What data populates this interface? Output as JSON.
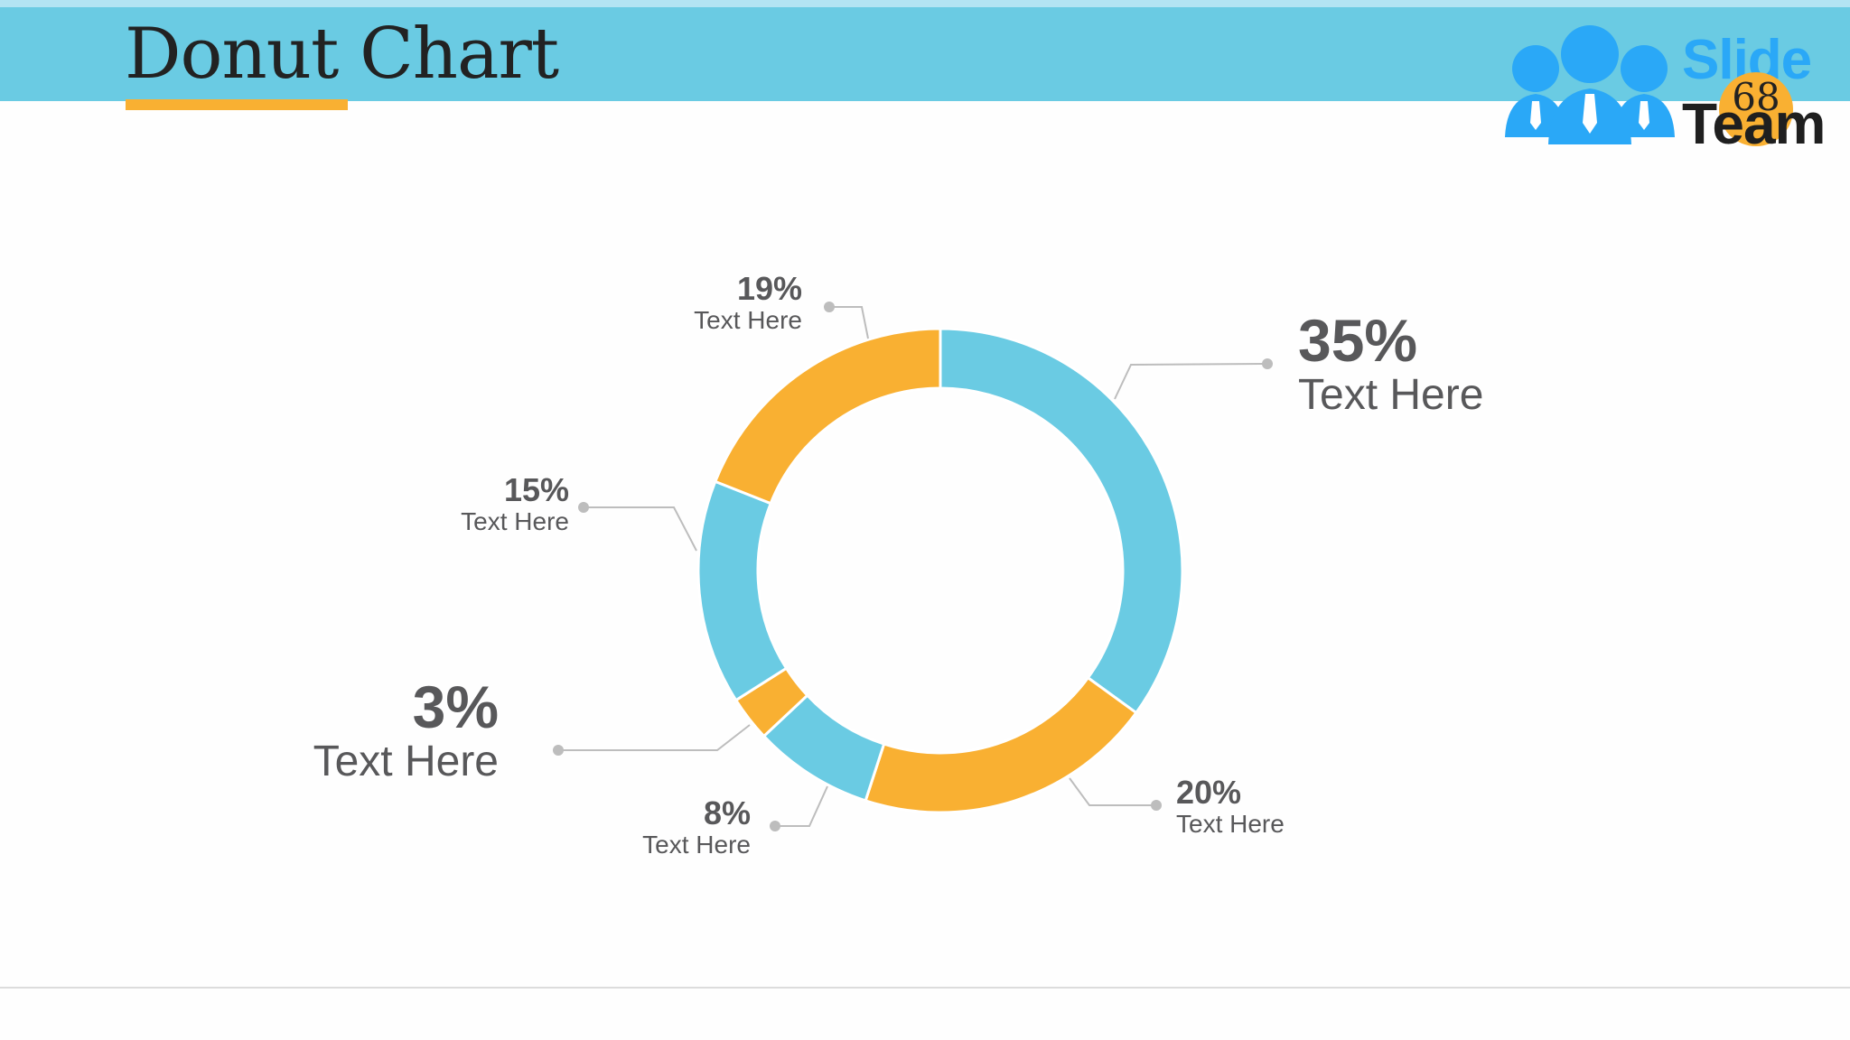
{
  "slide": {
    "title": "Donut Chart",
    "logo": {
      "word1": "Slide",
      "word2": "Team",
      "badge_number": "68"
    },
    "colors": {
      "header": "#6acbe3",
      "header_strip": "#b3e4f3",
      "accent": "#f9b032",
      "blue": "#6acbe3",
      "orange": "#f9b032",
      "text": "#58585a",
      "connector": "#bdbdbd"
    }
  },
  "labels": [
    {
      "pct": "35%",
      "text": "Text Here"
    },
    {
      "pct": "20%",
      "text": "Text Here"
    },
    {
      "pct": "8%",
      "text": "Text Here"
    },
    {
      "pct": "3%",
      "text": "Text Here"
    },
    {
      "pct": "15%",
      "text": "Text Here"
    },
    {
      "pct": "19%",
      "text": "Text Here"
    }
  ],
  "chart_data": {
    "type": "pie",
    "subtype": "donut",
    "title": "Donut Chart",
    "categories": [
      "Text Here",
      "Text Here",
      "Text Here",
      "Text Here",
      "Text Here",
      "Text Here"
    ],
    "values": [
      35,
      20,
      8,
      3,
      15,
      19
    ],
    "unit": "%",
    "segment_colors": [
      "#6acbe3",
      "#f9b032",
      "#6acbe3",
      "#f9b032",
      "#6acbe3",
      "#f9b032"
    ],
    "start_angle": "12 o'clock",
    "direction": "clockwise",
    "data_labels": [
      "35%",
      "20%",
      "8%",
      "3%",
      "15%",
      "19%"
    ],
    "legend": "none (callout labels with leader lines)"
  }
}
